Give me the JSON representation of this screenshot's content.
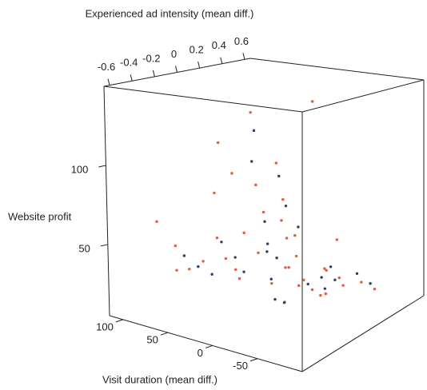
{
  "chart_data": {
    "type": "scatter3d",
    "xlabel": "Experienced ad intensity (mean diff.)",
    "ylabel": "Visit duration (mean diff.)",
    "zlabel": "Website profit",
    "xlim": [
      -0.65,
      0.65
    ],
    "xticks": [
      -0.6,
      -0.4,
      -0.2,
      0,
      0.2,
      0.4,
      0.6
    ],
    "ylim": [
      -100,
      115
    ],
    "yticks": [
      100,
      50,
      0,
      -50
    ],
    "zlim": [
      5,
      150
    ],
    "zticks": [
      50,
      100
    ],
    "series": [
      {
        "color": "#f4553a",
        "x": [
          0.05,
          -0.1,
          0.2,
          0.1,
          -0.2,
          0.3,
          0.0,
          0.15,
          -0.05,
          0.25,
          -0.3,
          0.1,
          0.05,
          -0.15,
          0.35,
          0.2,
          -0.1,
          0.0,
          0.4,
          -0.25,
          0.1,
          0.3,
          -0.05,
          0.15,
          0.0,
          0.2,
          -0.2,
          0.05,
          0.25,
          -0.1,
          0.1,
          0.45,
          -0.35,
          0.0,
          0.3,
          0.15,
          -0.05,
          0.2,
          0.1,
          -0.15
        ],
        "y": [
          10,
          30,
          -20,
          0,
          60,
          -40,
          20,
          -10,
          40,
          -30,
          80,
          5,
          -5,
          50,
          -60,
          15,
          25,
          -15,
          -70,
          70,
          35,
          -25,
          45,
          -35,
          0,
          10,
          90,
          20,
          -50,
          55,
          -45,
          -20,
          95,
          30,
          10,
          -5,
          65,
          -10,
          -30,
          40
        ],
        "z": [
          20,
          25,
          15,
          30,
          35,
          22,
          40,
          18,
          28,
          12,
          45,
          60,
          10,
          50,
          20,
          70,
          55,
          35,
          15,
          30,
          80,
          25,
          90,
          15,
          100,
          45,
          25,
          65,
          20,
          110,
          35,
          40,
          60,
          130,
          30,
          50,
          75,
          20,
          140,
          38
        ]
      },
      {
        "color": "#2e3f6e",
        "x": [
          0.0,
          -0.1,
          0.2,
          0.1,
          -0.2,
          0.3,
          0.05,
          -0.05,
          0.15,
          0.25,
          -0.3,
          0.1,
          0.0,
          -0.15,
          0.35,
          0.2,
          -0.1,
          0.05,
          0.4,
          -0.25,
          0.1,
          0.3,
          -0.05,
          0.15,
          0.0
        ],
        "y": [
          5,
          25,
          -15,
          10,
          50,
          -35,
          15,
          -5,
          30,
          -25,
          70,
          0,
          -10,
          45,
          -55,
          20,
          35,
          -20,
          -65,
          60,
          40,
          -30,
          20,
          -40,
          10
        ],
        "z": [
          25,
          30,
          18,
          35,
          28,
          20,
          45,
          15,
          55,
          22,
          40,
          70,
          12,
          48,
          25,
          85,
          38,
          60,
          18,
          33,
          95,
          28,
          120,
          20,
          42
        ]
      }
    ]
  }
}
